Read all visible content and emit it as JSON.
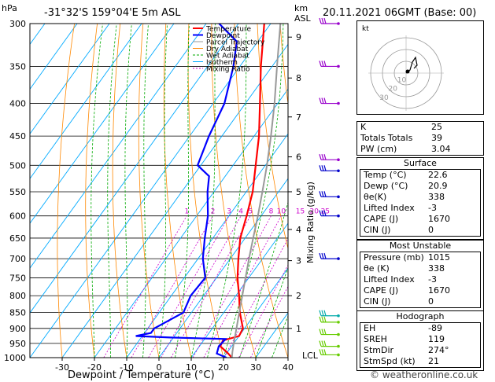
{
  "header": {
    "location": "-31°32'S  159°04'E  5m  ASL",
    "datetime": "20.11.2021  06GMT  (Base: 00)",
    "hpa_label": "hPa",
    "km_label": "km",
    "asl_label": "ASL"
  },
  "chart_data": {
    "type": "line",
    "pressure_ticks": [
      "300",
      "350",
      "400",
      "450",
      "500",
      "550",
      "600",
      "650",
      "700",
      "750",
      "800",
      "850",
      "900",
      "950",
      "1000"
    ],
    "temperature_ticks": [
      "-30",
      "-20",
      "-10",
      "0",
      "10",
      "20",
      "30",
      "40"
    ],
    "xlabel": "Dewpoint / Temperature (°C)",
    "ylabel_right": "Mixing Ratio (g/kg)",
    "xlim": [
      -40,
      40
    ],
    "ylim": [
      1000,
      300
    ],
    "km_ticks": [
      {
        "km": "1",
        "p": 900
      },
      {
        "km": "2",
        "p": 800
      },
      {
        "km": "3",
        "p": 705
      },
      {
        "km": "4",
        "p": 630
      },
      {
        "km": "5",
        "p": 550
      },
      {
        "km": "6",
        "p": 485
      },
      {
        "km": "7",
        "p": 420
      },
      {
        "km": "8",
        "p": 365
      },
      {
        "km": "9",
        "p": 315
      }
    ],
    "lcl_label": "LCL",
    "lcl_p": 992,
    "mixing_ratio_labels": [
      "1",
      "2",
      "3",
      "4",
      "5",
      "8",
      "10",
      "15",
      "20",
      "25"
    ],
    "mixing_ratio_values": [
      1,
      2,
      3,
      4,
      5,
      8,
      10,
      15,
      20,
      25
    ],
    "legend": [
      "Temperature",
      "Dewpoint",
      "Parcel Trajectory",
      "Dry Adiabat",
      "Wet Adiabat",
      "Isotherm",
      "Mixing Ratio"
    ],
    "series": [
      {
        "name": "Temperature",
        "color": "#ff0000",
        "points": [
          [
            1000,
            22.6
          ],
          [
            985,
            20.5
          ],
          [
            960,
            16.5
          ],
          [
            940,
            16.0
          ],
          [
            925,
            20.0
          ],
          [
            900,
            19.5
          ],
          [
            850,
            15.0
          ],
          [
            800,
            11.0
          ],
          [
            750,
            6.5
          ],
          [
            700,
            2.5
          ],
          [
            650,
            -1.5
          ],
          [
            600,
            -4.5
          ],
          [
            550,
            -8.0
          ],
          [
            500,
            -13.0
          ],
          [
            450,
            -18.5
          ],
          [
            400,
            -25.5
          ],
          [
            350,
            -33.5
          ],
          [
            300,
            -42.0
          ]
        ]
      },
      {
        "name": "Dewpoint",
        "color": "#0000ff",
        "points": [
          [
            1000,
            20.9
          ],
          [
            985,
            17.0
          ],
          [
            960,
            16.0
          ],
          [
            935,
            16.5
          ],
          [
            930,
            -1.0
          ],
          [
            925,
            -12.0
          ],
          [
            915,
            -8.0
          ],
          [
            900,
            -8.0
          ],
          [
            850,
            -2.5
          ],
          [
            800,
            -4.0
          ],
          [
            750,
            -3.5
          ],
          [
            700,
            -8.5
          ],
          [
            650,
            -12.5
          ],
          [
            600,
            -16.5
          ],
          [
            550,
            -22.0
          ],
          [
            520,
            -25.0
          ],
          [
            500,
            -31.0
          ],
          [
            450,
            -34.0
          ],
          [
            400,
            -36.5
          ],
          [
            350,
            -42.0
          ],
          [
            320,
            -46.5
          ],
          [
            300,
            -56.0
          ]
        ]
      },
      {
        "name": "Parcel Trajectory",
        "color": "#999999",
        "points": [
          [
            1000,
            22.6
          ],
          [
            980,
            21.5
          ],
          [
            950,
            20.0
          ],
          [
            900,
            17.5
          ],
          [
            850,
            14.8
          ],
          [
            800,
            12.0
          ],
          [
            750,
            9.0
          ],
          [
            700,
            5.8
          ],
          [
            650,
            2.5
          ],
          [
            600,
            -1.0
          ],
          [
            550,
            -5.0
          ],
          [
            500,
            -9.5
          ],
          [
            450,
            -14.8
          ],
          [
            400,
            -21.0
          ],
          [
            350,
            -28.5
          ],
          [
            300,
            -37.0
          ]
        ]
      }
    ],
    "wind_barbs_note": "",
    "isotherm_color": "#00aaff",
    "dry_adiabat_color": "#ff8800",
    "wet_adiabat_color": "#00aa00",
    "mixing_ratio_color": "#cc00cc"
  },
  "indices": {
    "k_label": "K",
    "k": "25",
    "tt_label": "Totals Totals",
    "tt": "39",
    "pw_label": "PW (cm)",
    "pw": "3.04"
  },
  "surface": {
    "title": "Surface",
    "temp_label": "Temp (°C)",
    "temp": "22.6",
    "dewp_label": "Dewp (°C)",
    "dewp": "20.9",
    "theta_label": "θe(K)",
    "theta": "338",
    "li_label": "Lifted Index",
    "li": "-3",
    "cape_label": "CAPE (J)",
    "cape": "1670",
    "cin_label": "CIN (J)",
    "cin": "0"
  },
  "unstable": {
    "title": "Most Unstable",
    "pres_label": "Pressure (mb)",
    "pres": "1015",
    "theta_label": "θe (K)",
    "theta": "338",
    "li_label": "Lifted Index",
    "li": "-3",
    "cape_label": "CAPE (J)",
    "cape": "1670",
    "cin_label": "CIN (J)",
    "cin": "0"
  },
  "hodograph": {
    "title": "Hodograph",
    "unit": "kt",
    "eh_label": "EH",
    "eh": "-89",
    "sreh_label": "SREH",
    "sreh": "119",
    "stmdir_label": "StmDir",
    "stmdir": "274°",
    "stmspd_label": "StmSpd (kt)",
    "stmspd": "21",
    "ring_labels": [
      "10",
      "20",
      "30"
    ]
  },
  "footer": {
    "credit": "© weatheronline.co.uk"
  }
}
